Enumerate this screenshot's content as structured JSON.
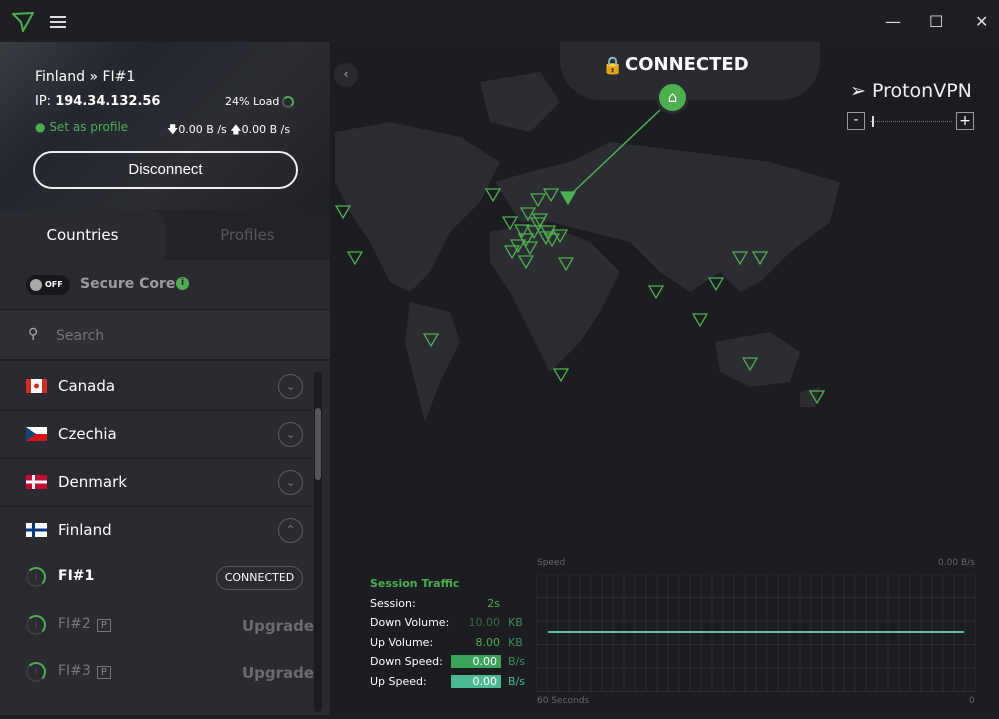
{
  "app": {
    "name": "ProtonVPN",
    "accent": "#4caf50"
  },
  "window": {
    "minimize": "—",
    "maximize": "☐",
    "close": "✕"
  },
  "connection": {
    "location": "Finland » FI#1",
    "ip_label": "IP:",
    "ip": "194.34.132.56",
    "load": "24% Load",
    "set_profile": "Set as profile",
    "down_rate": "0.00 B /s",
    "up_rate": "0.00 B /s",
    "disconnect": "Disconnect",
    "status": "CONNECTED"
  },
  "tabs": [
    {
      "label": "Countries",
      "active": true
    },
    {
      "label": "Profiles",
      "active": false
    }
  ],
  "secure_core": {
    "label": "Secure Core",
    "toggle": "OFF"
  },
  "search": {
    "placeholder": "Search"
  },
  "countries": [
    {
      "name": "Canada",
      "expanded": false
    },
    {
      "name": "Czechia",
      "expanded": false
    },
    {
      "name": "Denmark",
      "expanded": false
    },
    {
      "name": "Finland",
      "expanded": true
    }
  ],
  "servers": [
    {
      "name": "FI#1",
      "action": "CONNECTED",
      "plus": false
    },
    {
      "name": "FI#2",
      "action": "Upgrade",
      "plus": true,
      "badge": "P"
    },
    {
      "name": "FI#3",
      "action": "Upgrade",
      "plus": true,
      "badge": "P"
    }
  ],
  "zoom": {
    "minus": "-",
    "plus": "+"
  },
  "session": {
    "title": "Session Traffic",
    "rows": [
      {
        "label": "Session:",
        "value": "2s",
        "unit": ""
      },
      {
        "label": "Down Volume:",
        "value": "10.00",
        "unit": "KB"
      },
      {
        "label": "Up Volume:",
        "value": "8.00",
        "unit": "KB"
      },
      {
        "label": "Down Speed:",
        "value": "0.00",
        "unit": "B/s"
      },
      {
        "label": "Up Speed:",
        "value": "0.00",
        "unit": "B/s"
      }
    ]
  },
  "graph": {
    "title": "Speed",
    "max": "0.00",
    "max_unit": "B/s",
    "x_start": "60 Seconds",
    "x_end": "0"
  }
}
